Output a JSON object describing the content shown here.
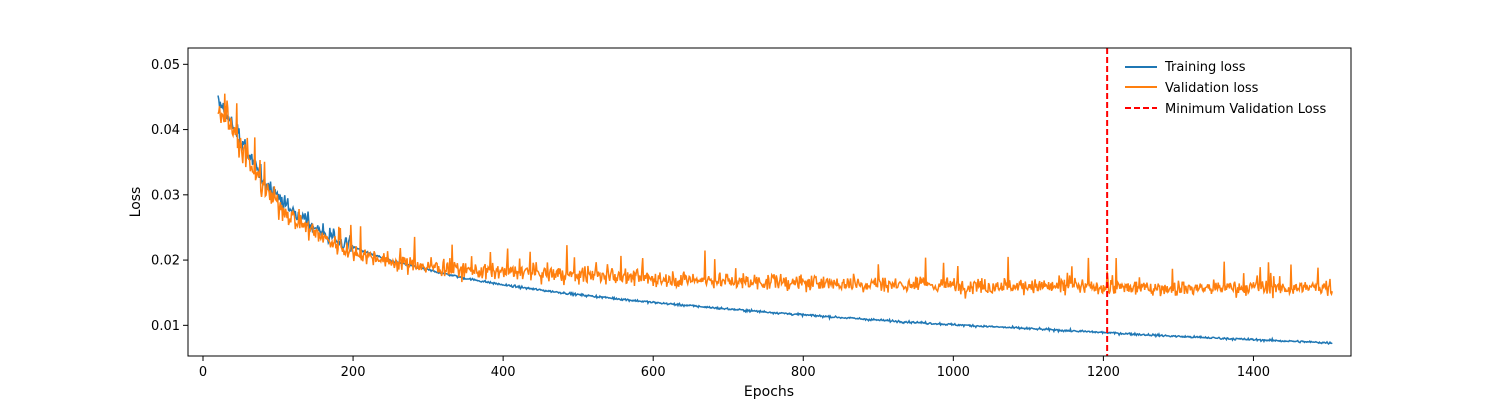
{
  "chart_data": {
    "type": "line",
    "title": "",
    "xlabel": "Epochs",
    "ylabel": "Loss",
    "xlim": [
      -20,
      1530
    ],
    "ylim": [
      0.0053,
      0.0525
    ],
    "xticks": [
      0,
      200,
      400,
      600,
      800,
      1000,
      1200,
      1400
    ],
    "yticks": [
      0.01,
      0.02,
      0.03,
      0.04,
      0.05
    ],
    "legend_position": "top-right",
    "grid": false,
    "series": [
      {
        "name": "Training loss",
        "color": "#1f77b4",
        "x_start": 20,
        "x_end": 1505,
        "x": [
          20,
          30,
          40,
          50,
          60,
          70,
          80,
          90,
          100,
          120,
          140,
          160,
          180,
          200,
          220,
          250,
          300,
          350,
          400,
          450,
          500,
          600,
          700,
          800,
          900,
          1000,
          1100,
          1200,
          1300,
          1400,
          1505
        ],
        "y": [
          0.0445,
          0.0425,
          0.0405,
          0.0385,
          0.0365,
          0.0345,
          0.0325,
          0.031,
          0.0297,
          0.0275,
          0.0257,
          0.0242,
          0.023,
          0.022,
          0.0211,
          0.0199,
          0.0185,
          0.0172,
          0.0162,
          0.0154,
          0.0147,
          0.0135,
          0.0125,
          0.0116,
          0.0108,
          0.0101,
          0.0095,
          0.0089,
          0.0083,
          0.0078,
          0.0073
        ]
      },
      {
        "name": "Validation loss",
        "color": "#ff7f0e",
        "x_start": 20,
        "x_end": 1505,
        "x": [
          20,
          40,
          60,
          80,
          100,
          120,
          140,
          160,
          180,
          200,
          250,
          300,
          350,
          400,
          450,
          500,
          600,
          700,
          800,
          900,
          1000,
          1100,
          1200,
          1300,
          1400,
          1505
        ],
        "y": [
          0.043,
          0.04,
          0.035,
          0.031,
          0.0285,
          0.0265,
          0.025,
          0.0235,
          0.0222,
          0.0212,
          0.0198,
          0.019,
          0.0185,
          0.0182,
          0.018,
          0.0177,
          0.0172,
          0.0168,
          0.0165,
          0.0163,
          0.0161,
          0.016,
          0.0158,
          0.0157,
          0.0157,
          0.0158
        ]
      }
    ],
    "vline": {
      "name": "Minimum Validation Loss",
      "x": 1205,
      "color": "#ff0000",
      "style": "dashed"
    }
  }
}
